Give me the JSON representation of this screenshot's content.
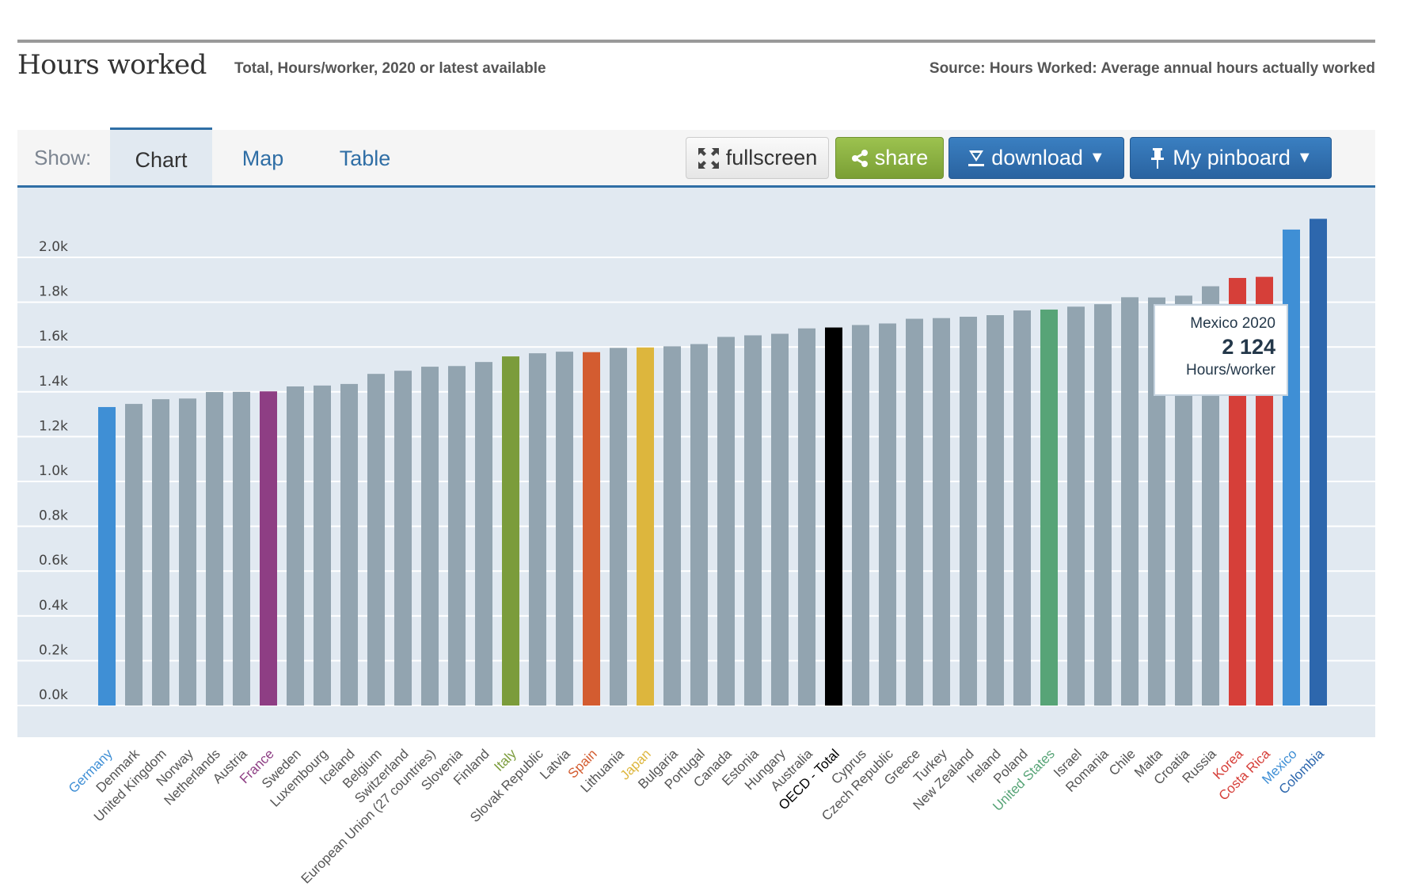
{
  "header": {
    "title": "Hours worked",
    "subtitle": "Total, Hours/worker, 2020 or latest available",
    "source": "Source: Hours Worked: Average annual hours actually worked"
  },
  "toolbar": {
    "show_label": "Show:",
    "tabs": [
      {
        "label": "Chart",
        "active": true
      },
      {
        "label": "Map",
        "active": false
      },
      {
        "label": "Table",
        "active": false
      }
    ],
    "buttons": {
      "fullscreen": {
        "label": "fullscreen",
        "icon": "fullscreen-arrows-icon"
      },
      "share": {
        "label": "share",
        "icon": "share-icon"
      },
      "download": {
        "label": "download",
        "icon": "download-icon",
        "caret": "▼"
      },
      "pinboard": {
        "label": "My pinboard",
        "icon": "pin-icon",
        "caret": "▼"
      }
    }
  },
  "tooltip": {
    "title": "Mexico 2020",
    "value": "2 124",
    "unit": "Hours/worker"
  },
  "colors": {
    "default_bar": "#92a4b0",
    "highlight_blue": "#3f8fd5",
    "france": "#8e3e84",
    "italy": "#7b9c3b",
    "spain": "#d35c30",
    "japan": "#ddb63d",
    "oecd": "#000000",
    "united_states": "#57a477",
    "korea_costa_rica": "#d63f39",
    "colombia": "#2d67ad",
    "axis_text": "#444444",
    "label_default": "#555555"
  },
  "chart_data": {
    "type": "bar",
    "title": "Hours worked",
    "subtitle": "Total, Hours/worker, 2020 or latest available",
    "xlabel": "",
    "ylabel": "",
    "ylim": [
      0,
      2000
    ],
    "yticks": [
      0,
      200,
      400,
      600,
      800,
      1000,
      1200,
      1400,
      1600,
      1800,
      2000
    ],
    "ytick_labels": [
      "0.0k",
      "0.2k",
      "0.4k",
      "0.6k",
      "0.8k",
      "1.0k",
      "1.2k",
      "1.4k",
      "1.6k",
      "1.8k",
      "2.0k"
    ],
    "grid": true,
    "legend": "none",
    "categories": [
      "Germany",
      "Denmark",
      "United Kingdom",
      "Norway",
      "Netherlands",
      "Austria",
      "France",
      "Sweden",
      "Luxembourg",
      "Iceland",
      "Belgium",
      "Switzerland",
      "European Union (27 countries)",
      "Slovenia",
      "Finland",
      "Italy",
      "Slovak Republic",
      "Latvia",
      "Spain",
      "Lithuania",
      "Japan",
      "Bulgaria",
      "Portugal",
      "Canada",
      "Estonia",
      "Hungary",
      "Australia",
      "OECD - Total",
      "Cyprus",
      "Czech Republic",
      "Greece",
      "Turkey",
      "New Zealand",
      "Ireland",
      "Poland",
      "United States",
      "Israel",
      "Romania",
      "Chile",
      "Malta",
      "Croatia",
      "Russia",
      "Korea",
      "Costa Rica",
      "Mexico",
      "Colombia"
    ],
    "values": [
      1332,
      1346,
      1367,
      1370,
      1399,
      1400,
      1402,
      1424,
      1428,
      1435,
      1480,
      1494,
      1512,
      1515,
      1533,
      1558,
      1572,
      1579,
      1577,
      1596,
      1598,
      1603,
      1613,
      1645,
      1652,
      1659,
      1683,
      1687,
      1698,
      1705,
      1726,
      1729,
      1735,
      1742,
      1763,
      1767,
      1780,
      1791,
      1822,
      1821,
      1829,
      1871,
      1908,
      1913,
      2124,
      2172
    ],
    "highlights": {
      "Germany": "#3f8fd5",
      "France": "#8e3e84",
      "Italy": "#7b9c3b",
      "Spain": "#d35c30",
      "Japan": "#ddb63d",
      "OECD - Total": "#000000",
      "United States": "#57a477",
      "Korea": "#d63f39",
      "Costa Rica": "#d63f39",
      "Mexico": "#3f8fd5",
      "Colombia": "#2d67ad"
    }
  }
}
